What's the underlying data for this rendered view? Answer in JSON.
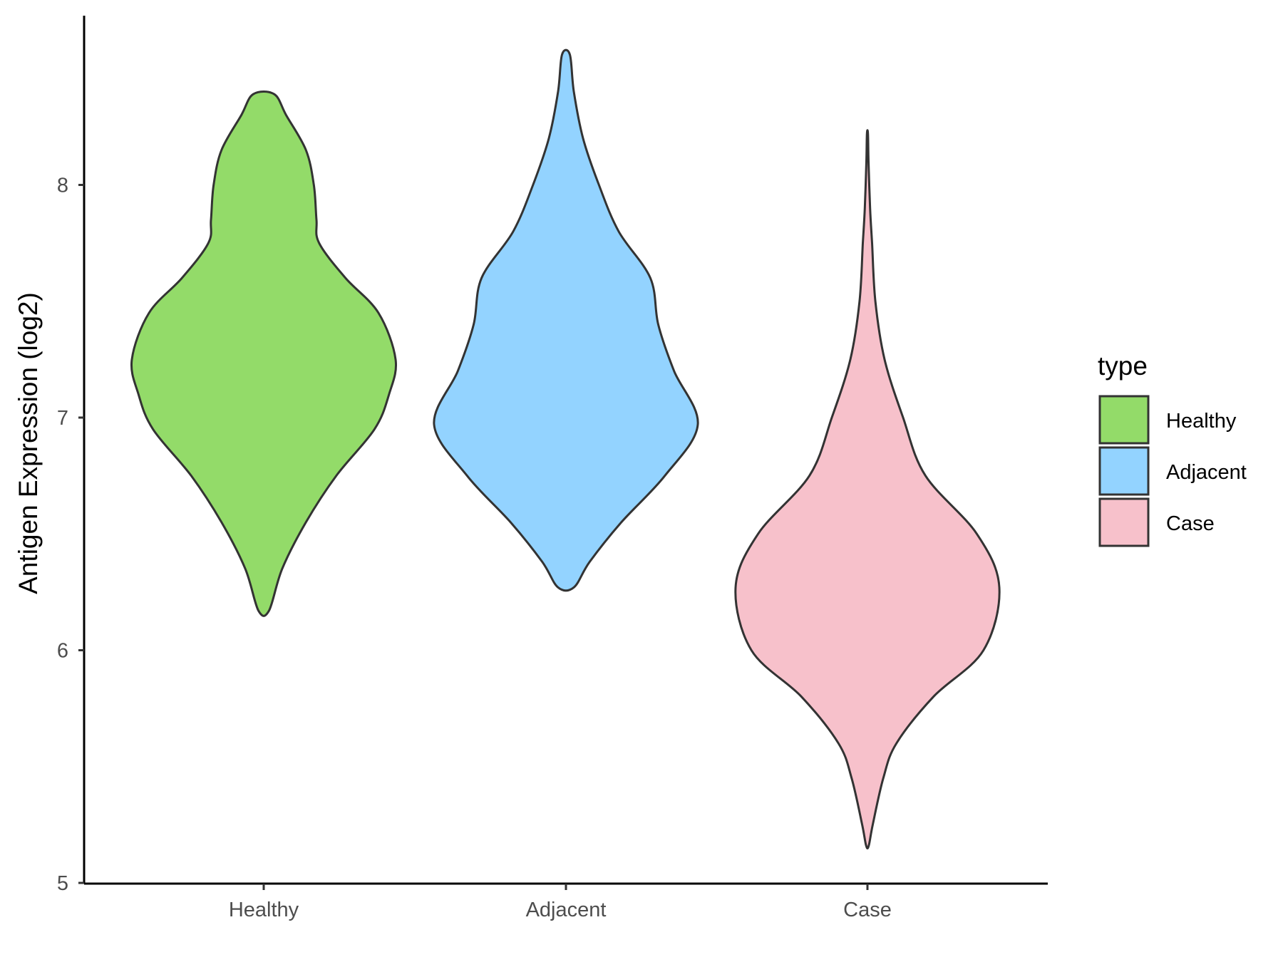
{
  "chart_data": {
    "type": "violin",
    "title": "",
    "xlabel": "",
    "ylabel": "Antigen Expression (log2)",
    "categories": [
      "Healthy",
      "Adjacent",
      "Case"
    ],
    "ylim": [
      5,
      8.75
    ],
    "yticks": [
      5,
      6,
      7,
      8
    ],
    "grid": false,
    "legend": {
      "title": "type",
      "position": "right",
      "entries": [
        "Healthy",
        "Adjacent",
        "Case"
      ]
    },
    "colors": {
      "Healthy": "#93DB69",
      "Adjacent": "#93D3FF",
      "Case": "#F7C1CB",
      "outline": "#333333"
    },
    "series": [
      {
        "name": "Healthy",
        "min": 6.17,
        "max": 8.39,
        "density_profile": [
          [
            6.17,
            0.04
          ],
          [
            6.35,
            0.14
          ],
          [
            6.55,
            0.32
          ],
          [
            6.75,
            0.55
          ],
          [
            6.95,
            0.84
          ],
          [
            7.1,
            0.95
          ],
          [
            7.25,
            1.0
          ],
          [
            7.45,
            0.87
          ],
          [
            7.6,
            0.62
          ],
          [
            7.75,
            0.42
          ],
          [
            7.85,
            0.4
          ],
          [
            8.0,
            0.38
          ],
          [
            8.15,
            0.32
          ],
          [
            8.3,
            0.17
          ],
          [
            8.39,
            0.08
          ]
        ]
      },
      {
        "name": "Adjacent",
        "min": 6.27,
        "max": 8.56,
        "density_profile": [
          [
            6.27,
            0.06
          ],
          [
            6.38,
            0.18
          ],
          [
            6.55,
            0.42
          ],
          [
            6.75,
            0.75
          ],
          [
            6.97,
            1.0
          ],
          [
            7.2,
            0.82
          ],
          [
            7.4,
            0.7
          ],
          [
            7.6,
            0.64
          ],
          [
            7.8,
            0.4
          ],
          [
            8.0,
            0.25
          ],
          [
            8.2,
            0.13
          ],
          [
            8.4,
            0.06
          ],
          [
            8.56,
            0.03
          ]
        ]
      },
      {
        "name": "Case",
        "min": 5.16,
        "max": 8.22,
        "density_profile": [
          [
            5.16,
            0.01
          ],
          [
            5.25,
            0.04
          ],
          [
            5.45,
            0.12
          ],
          [
            5.6,
            0.22
          ],
          [
            5.8,
            0.5
          ],
          [
            6.0,
            0.88
          ],
          [
            6.27,
            1.0
          ],
          [
            6.5,
            0.83
          ],
          [
            6.75,
            0.44
          ],
          [
            7.0,
            0.27
          ],
          [
            7.25,
            0.13
          ],
          [
            7.5,
            0.06
          ],
          [
            7.75,
            0.035
          ],
          [
            7.9,
            0.02
          ],
          [
            8.1,
            0.008
          ],
          [
            8.22,
            0.004
          ]
        ]
      }
    ]
  }
}
